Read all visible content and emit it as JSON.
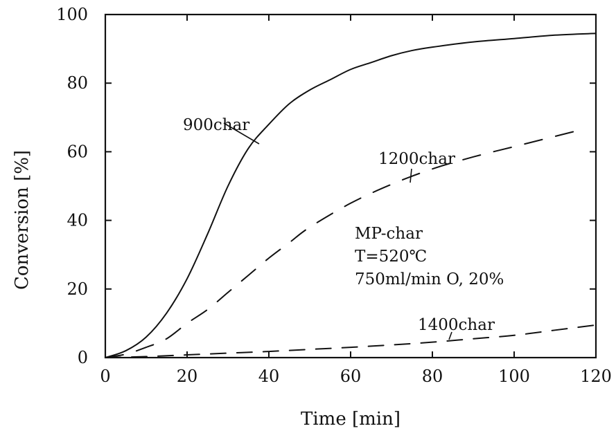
{
  "chart_data": {
    "type": "line",
    "title": "",
    "xlabel": "Time [min]",
    "ylabel": "Conversion [%]",
    "xlim": [
      0,
      120
    ],
    "ylim": [
      0,
      100
    ],
    "xticks": [
      "0",
      "20",
      "40",
      "60",
      "80",
      "100",
      "120"
    ],
    "yticks": [
      "0",
      "20",
      "40",
      "60",
      "80",
      "100"
    ],
    "grid": false,
    "legend": "none",
    "series": [
      {
        "name": "900char",
        "style": "solid",
        "x": [
          0,
          5,
          10,
          15,
          20,
          25,
          30,
          35,
          40,
          45,
          50,
          55,
          60,
          65,
          70,
          75,
          80,
          90,
          100,
          110,
          120
        ],
        "y": [
          0,
          2,
          6,
          13,
          23,
          36,
          50,
          61,
          68,
          74,
          78,
          81,
          84,
          86,
          88,
          89.5,
          90.5,
          92,
          93,
          94,
          94.5
        ]
      },
      {
        "name": "1200char",
        "style": "dashed",
        "x": [
          0,
          5,
          10,
          15,
          20,
          25,
          30,
          35,
          40,
          45,
          50,
          60,
          70,
          80,
          90,
          100,
          110,
          115
        ],
        "y": [
          0,
          1,
          3,
          5.5,
          10,
          14,
          19,
          24,
          29,
          33.5,
          38,
          45,
          50.5,
          55,
          58.5,
          61.5,
          64.5,
          66
        ]
      },
      {
        "name": "1400char",
        "style": "dashed",
        "x": [
          0,
          10,
          20,
          30,
          40,
          50,
          60,
          70,
          80,
          90,
          100,
          110,
          120
        ],
        "y": [
          0,
          0.3,
          0.8,
          1.3,
          1.8,
          2.4,
          3.0,
          3.7,
          4.5,
          5.5,
          6.5,
          8.0,
          9.5
        ]
      }
    ],
    "annotations": {
      "label_900": "900char",
      "label_1200": "1200char",
      "label_1400": "1400char",
      "conditions": [
        "MP-char",
        "T=520℃",
        "750ml/min O, 20%"
      ]
    }
  }
}
